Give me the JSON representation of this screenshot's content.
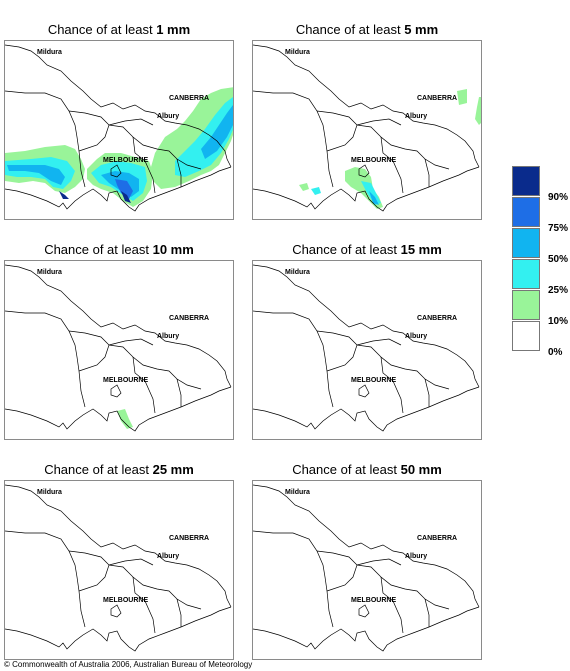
{
  "panels": [
    {
      "title_prefix": "Chance of at least ",
      "threshold": "1 mm"
    },
    {
      "title_prefix": "Chance of at least ",
      "threshold": "5 mm"
    },
    {
      "title_prefix": "Chance of at least ",
      "threshold": "10 mm"
    },
    {
      "title_prefix": "Chance of at least ",
      "threshold": "15 mm"
    },
    {
      "title_prefix": "Chance of at least ",
      "threshold": "25 mm"
    },
    {
      "title_prefix": "Chance of at least ",
      "threshold": "50 mm"
    }
  ],
  "places": {
    "mildura": "Mildura",
    "canberra": "CANBERRA",
    "albury": "Albury",
    "melbourne": "MELBOURNE"
  },
  "legend": {
    "labels": [
      "90%",
      "75%",
      "50%",
      "25%",
      "10%",
      "0%"
    ],
    "colors": [
      "#0a2b8c",
      "#1e6ee6",
      "#11b4f0",
      "#33f0f0",
      "#99f499",
      "#ffffff"
    ]
  },
  "copyright": "© Commonwealth of Australia 2006, Australian Bureau of Meteorology"
}
